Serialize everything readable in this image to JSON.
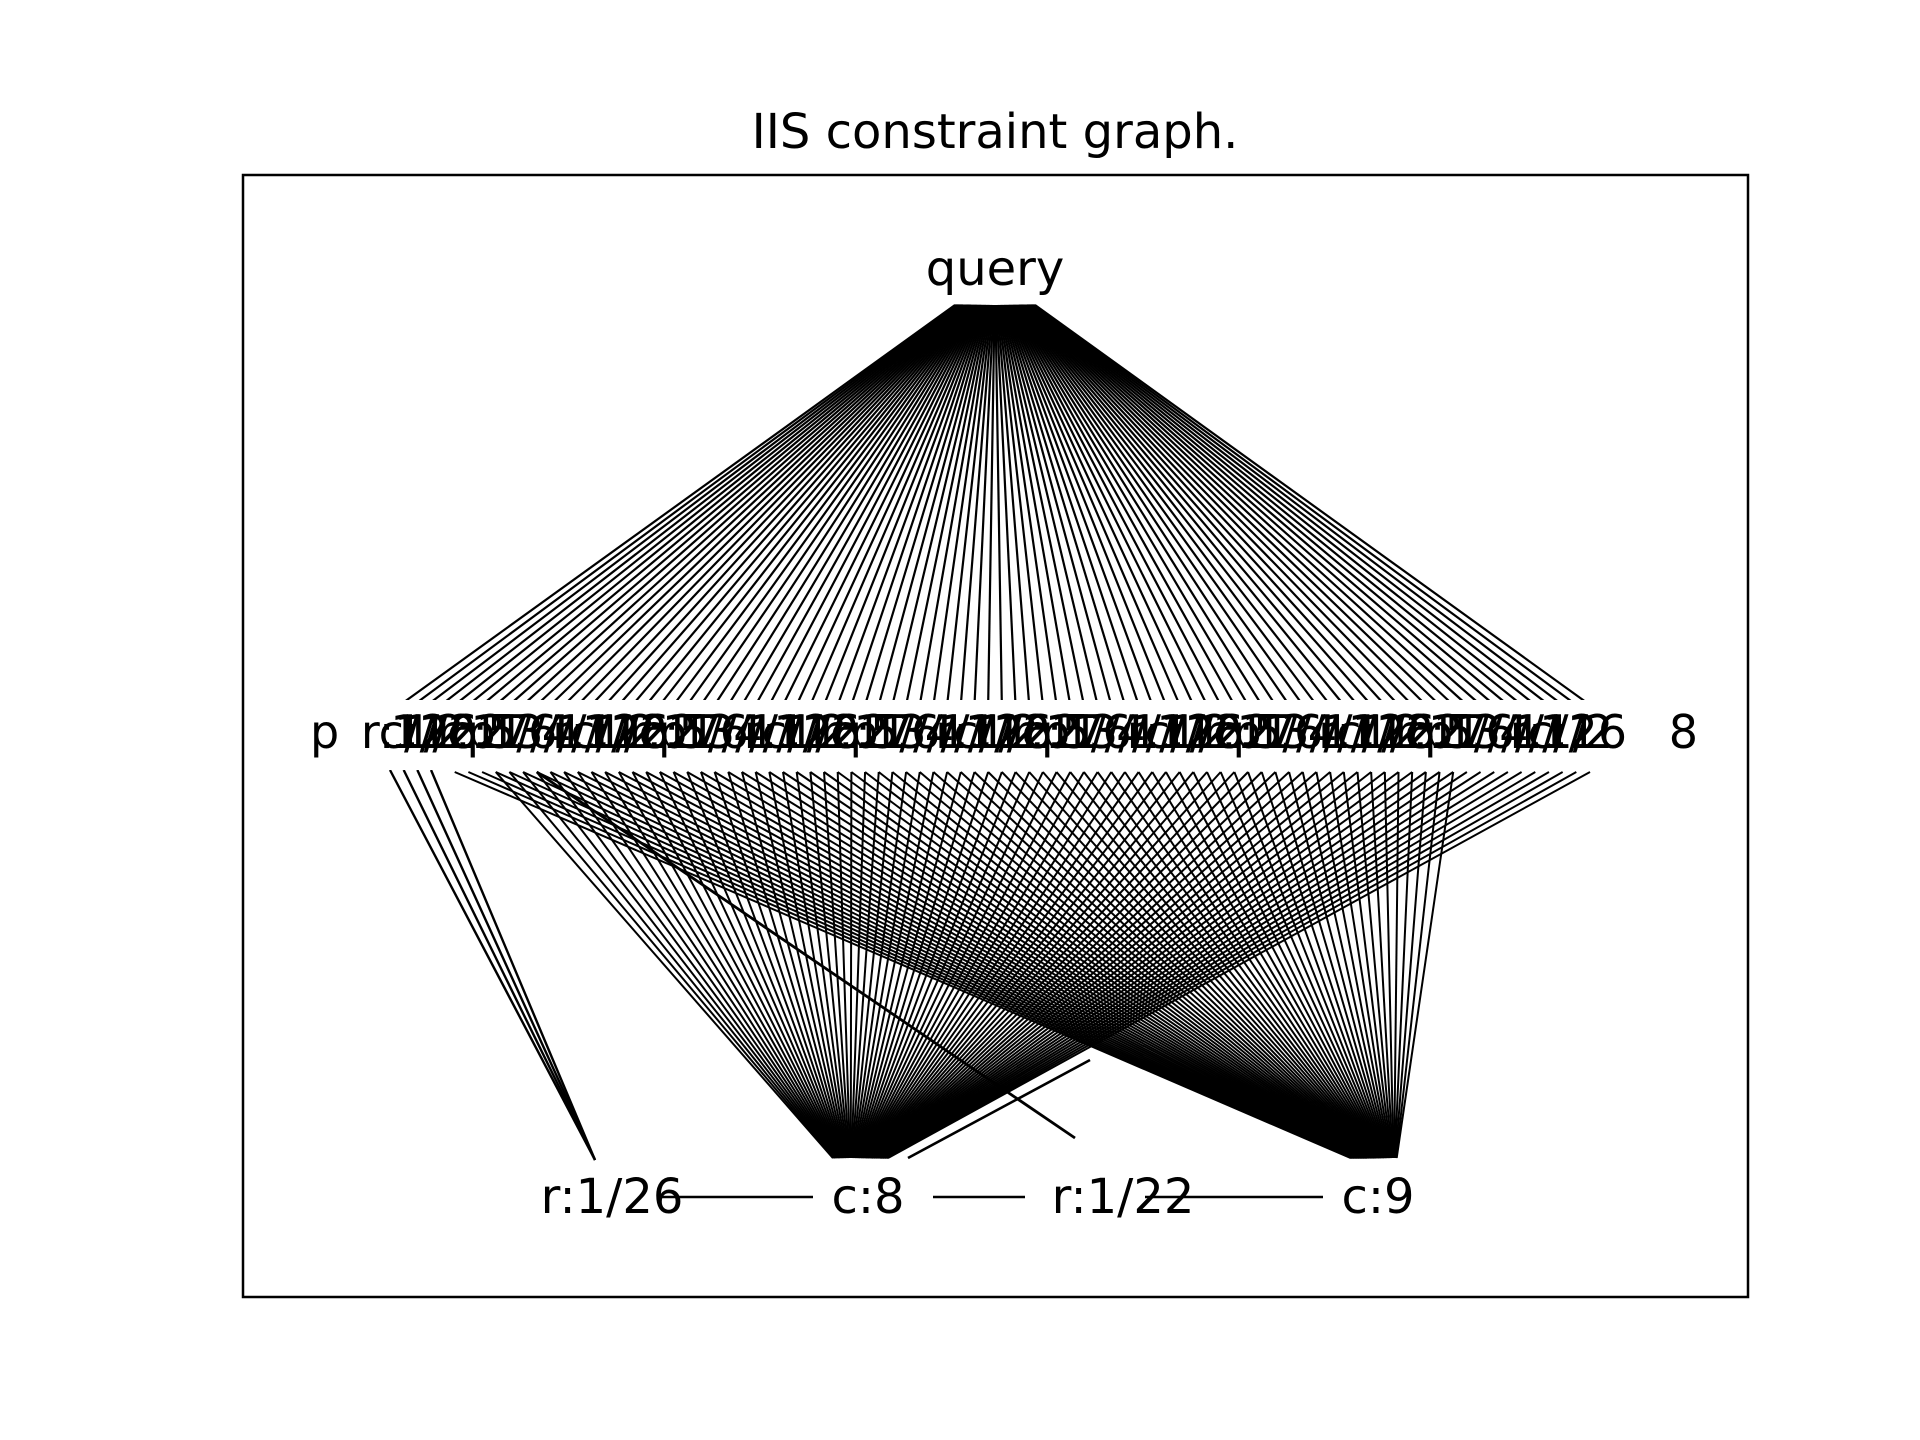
{
  "title": "IIS constraint graph.",
  "colors": {
    "background": "#ffffff",
    "edge": "#000000",
    "text": "#000000",
    "frame": "#000000"
  },
  "graph": {
    "top_node": "query",
    "middle_label_left": "p",
    "middle_label_right": "8",
    "middle_label_fragments": [
      "r:1/",
      "c:1",
      "1/2",
      "/26",
      "1/22",
      "r:1",
      "c:1",
      "p1",
      "5/",
      "7/",
      "3/",
      "6/",
      "4/",
      "1/"
    ],
    "middle_node_count": 88,
    "bottom_nodes": [
      {
        "id": "r26",
        "label": "r:1/26"
      },
      {
        "id": "c8",
        "label": "c:8"
      },
      {
        "id": "r22",
        "label": "r:1/22"
      },
      {
        "id": "c9",
        "label": "c:9"
      }
    ],
    "bottom_links": [
      [
        "r26",
        "c8"
      ],
      [
        "c8",
        "r22"
      ],
      [
        "r22",
        "c9"
      ]
    ]
  }
}
